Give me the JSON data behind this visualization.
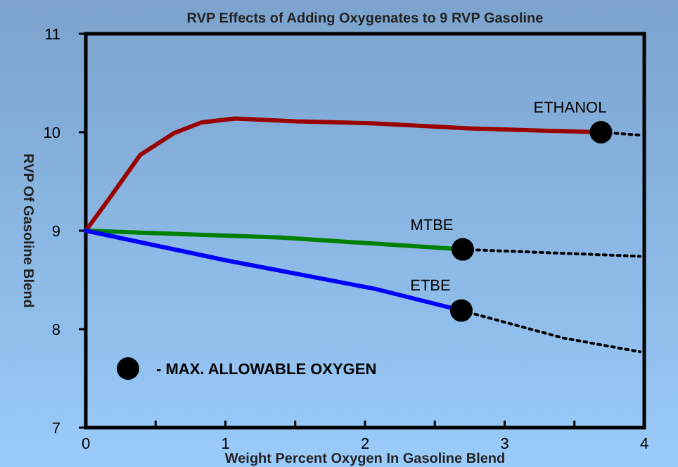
{
  "chart_data": {
    "type": "line",
    "title": "RVP Effects of Adding Oxygenates to 9 RVP Gasoline",
    "xlabel": "Weight Percent Oxygen In Gasoline Blend",
    "ylabel": "RVP Of Gasoline Blend",
    "xlim": [
      0,
      4
    ],
    "xticks": [
      0,
      {
        "value": 0.5,
        "label": null
      },
      1,
      {
        "value": 1.5,
        "label": null
      },
      2,
      {
        "value": 2.5,
        "label": null
      },
      3,
      {
        "value": 3.5,
        "label": null
      },
      4
    ],
    "ylim": [
      7,
      11
    ],
    "yticks": [
      7,
      8,
      9,
      10,
      11
    ],
    "grid": false,
    "legend": "bottom left",
    "marker": "none",
    "line_style": "solid",
    "series": [
      {
        "name": "ETHANOL",
        "color": "#990000",
        "x": [
          0,
          0.19,
          0.39,
          0.63,
          0.83,
          1.07,
          1.5,
          2.07,
          2.74,
          3.42,
          3.69
        ],
        "values": [
          9,
          9.37,
          9.77,
          9.99,
          10.1,
          10.14,
          10.11,
          10.09,
          10.04,
          10.01,
          10.0
        ]
      },
      {
        "color": "#000000",
        "line_style": "dotted",
        "x": [
          3.69,
          3.97
        ],
        "values": [
          10.0,
          9.97
        ]
      },
      {
        "name": "MTBE",
        "color": "#008000",
        "x": [
          0,
          1.4,
          2.7
        ],
        "values": [
          9,
          8.93,
          8.81
        ]
      },
      {
        "color": "#000000",
        "line_style": "dotted",
        "x": [
          2.7,
          3.97
        ],
        "values": [
          8.81,
          8.74
        ]
      },
      {
        "name": "ETBE",
        "color": "#0000ff",
        "x": [
          0,
          1.0,
          2.07,
          2.69
        ],
        "values": [
          9,
          8.7,
          8.41,
          8.19
        ]
      },
      {
        "color": "#000000",
        "line_style": "dotted",
        "x": [
          2.69,
          3.42,
          3.97
        ],
        "values": [
          8.19,
          7.91,
          7.77
        ]
      },
      {
        "name": "- MAX. ALLOWABLE OXYGEN",
        "type": "scatter",
        "marker": "circle",
        "color": "#000000",
        "x": [
          3.69,
          2.7,
          2.69
        ],
        "values": [
          10.0,
          8.81,
          8.19
        ]
      }
    ]
  }
}
